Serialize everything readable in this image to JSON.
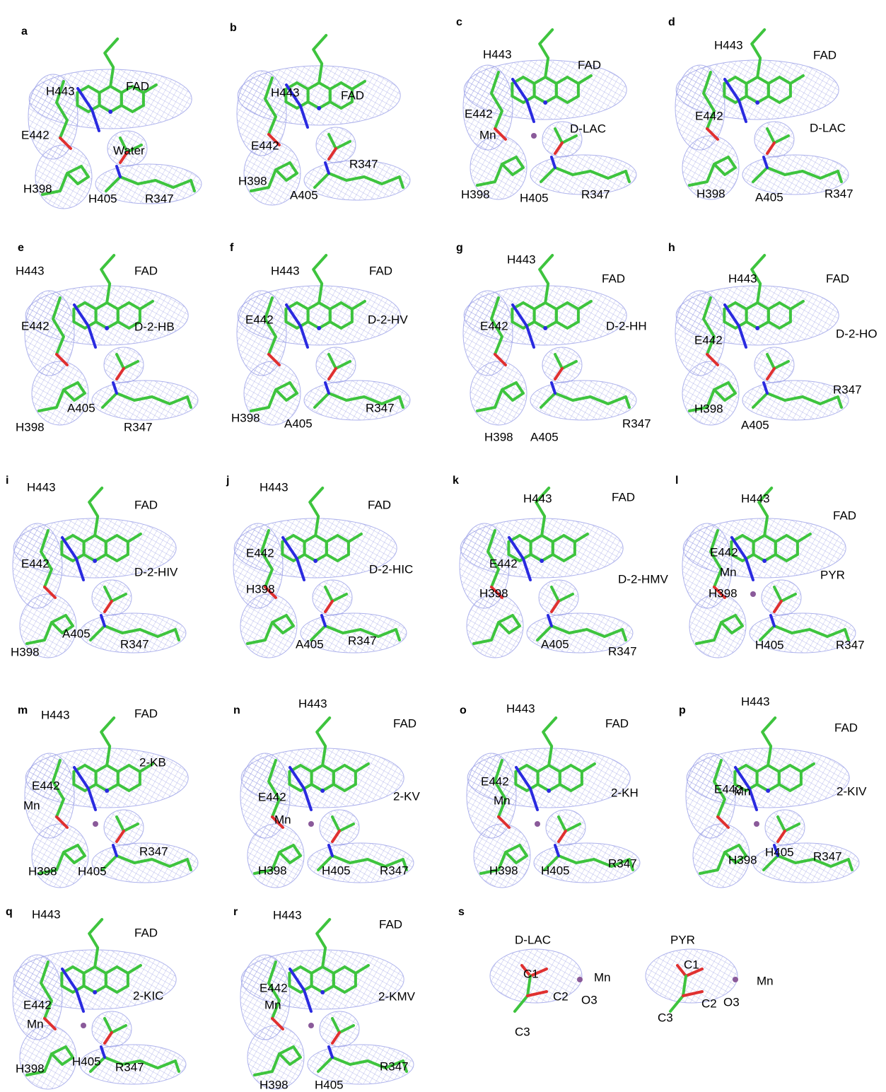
{
  "panels": [
    {
      "letter": "a",
      "labels": [
        "H443",
        "FAD",
        "E442",
        "Water",
        "H398",
        "H405",
        "R347"
      ]
    },
    {
      "letter": "b",
      "labels": [
        "H443",
        "FAD",
        "E442",
        "R347",
        "H398",
        "A405"
      ]
    },
    {
      "letter": "c",
      "labels": [
        "H443",
        "FAD",
        "E442",
        "D-LAC",
        "Mn",
        "H398",
        "H405",
        "R347"
      ]
    },
    {
      "letter": "d",
      "labels": [
        "H443",
        "FAD",
        "E442",
        "D-LAC",
        "H398",
        "A405",
        "R347"
      ]
    },
    {
      "letter": "e",
      "labels": [
        "H443",
        "FAD",
        "E442",
        "D-2-HB",
        "A405",
        "H398",
        "R347"
      ]
    },
    {
      "letter": "f",
      "labels": [
        "H443",
        "FAD",
        "E442",
        "D-2-HV",
        "R347",
        "H398",
        "A405"
      ]
    },
    {
      "letter": "g",
      "labels": [
        "H443",
        "FAD",
        "E442",
        "D-2-HH",
        "R347",
        "H398",
        "A405"
      ]
    },
    {
      "letter": "h",
      "labels": [
        "H443",
        "FAD",
        "E442",
        "D-2-HO",
        "R347",
        "H398",
        "A405"
      ]
    },
    {
      "letter": "i",
      "labels": [
        "H443",
        "FAD",
        "E442",
        "D-2-HIV",
        "A405",
        "R347",
        "H398"
      ]
    },
    {
      "letter": "j",
      "labels": [
        "H443",
        "FAD",
        "E442",
        "D-2-HIC",
        "H398",
        "R347",
        "A405"
      ]
    },
    {
      "letter": "k",
      "labels": [
        "H443",
        "FAD",
        "E442",
        "D-2-HMV",
        "H398",
        "A405",
        "R347"
      ]
    },
    {
      "letter": "l",
      "labels": [
        "H443",
        "FAD",
        "E442",
        "Mn",
        "PYR",
        "H398",
        "H405",
        "R347"
      ]
    },
    {
      "letter": "m",
      "labels": [
        "H443",
        "FAD",
        "2-KB",
        "E442",
        "Mn",
        "R347",
        "H398",
        "H405"
      ]
    },
    {
      "letter": "n",
      "labels": [
        "H443",
        "FAD",
        "E442",
        "2-KV",
        "Mn",
        "H398",
        "H405",
        "R347"
      ]
    },
    {
      "letter": "o",
      "labels": [
        "H443",
        "FAD",
        "E442",
        "2-KH",
        "Mn",
        "R347",
        "H398",
        "H405"
      ]
    },
    {
      "letter": "p",
      "labels": [
        "H443",
        "FAD",
        "E442",
        "Mn",
        "2-KIV",
        "H405",
        "R347",
        "H398"
      ]
    },
    {
      "letter": "q",
      "labels": [
        "H443",
        "FAD",
        "E442",
        "2-KIC",
        "Mn",
        "R347",
        "H405",
        "H398"
      ]
    },
    {
      "letter": "r",
      "labels": [
        "H443",
        "FAD",
        "E442",
        "2-KMV",
        "Mn",
        "R347",
        "H398",
        "H405"
      ]
    },
    {
      "letter": "s",
      "labels": [
        "D-LAC",
        "C1",
        "Mn",
        "C2",
        "O3",
        "C3",
        "PYR",
        "C1",
        "Mn",
        "C2",
        "O3",
        "C3"
      ]
    }
  ]
}
